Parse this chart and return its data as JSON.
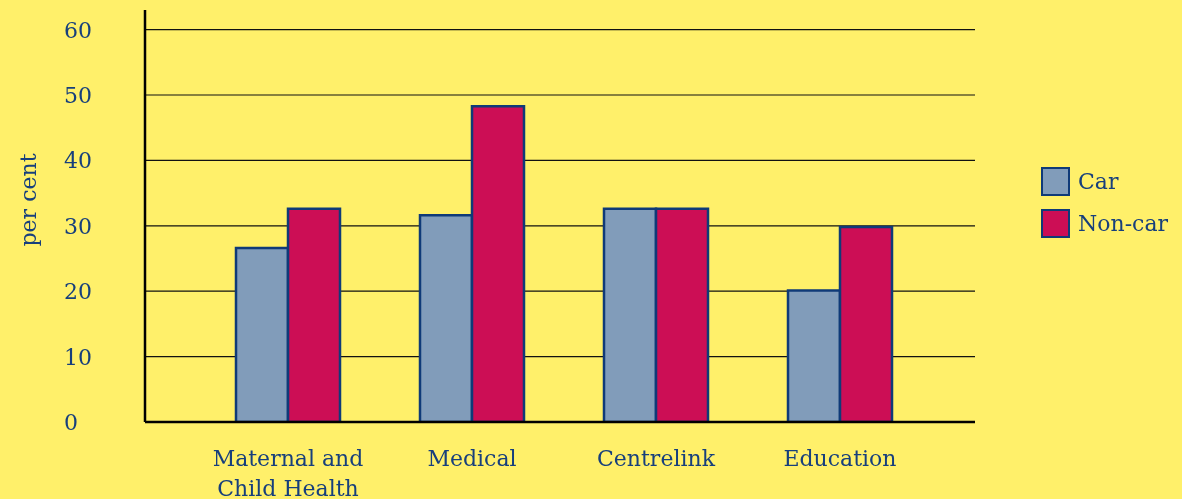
{
  "chart_data": {
    "type": "bar",
    "ylabel": "per cent",
    "categories": [
      "Maternal and Child Health",
      "Medical",
      "Centrelink",
      "Education"
    ],
    "series": [
      {
        "name": "Car",
        "color": "#819cba",
        "values": [
          26.6,
          31.6,
          32.6,
          20.1
        ]
      },
      {
        "name": "Non-car",
        "color": "#cc0e55",
        "values": [
          32.6,
          48.3,
          32.6,
          29.8
        ]
      }
    ],
    "ylim": [
      0,
      63
    ],
    "yticks": [
      0,
      10,
      20,
      30,
      40,
      50,
      60
    ],
    "grid": "y",
    "legend": "right"
  }
}
